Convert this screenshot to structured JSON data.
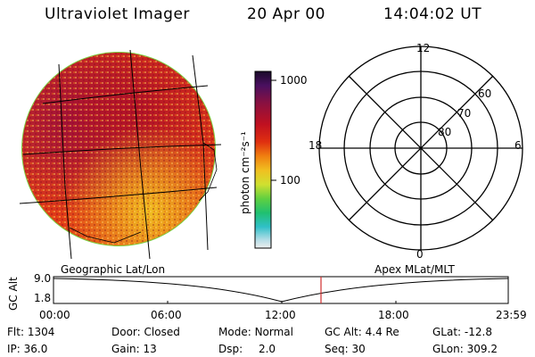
{
  "header": {
    "instrument": "Ultraviolet Imager",
    "date": "20 Apr 00",
    "time": "14:04:02 UT"
  },
  "colorbar": {
    "unit_label": "photon cm⁻²s⁻¹",
    "tick_1000": "1000",
    "tick_100": "100",
    "colors": [
      "#2a0a3a",
      "#5a1060",
      "#8e1040",
      "#c01020",
      "#e02810",
      "#f06a10",
      "#f0a010",
      "#e8d020",
      "#b8e030",
      "#50d040",
      "#20c070",
      "#20b8c0",
      "#90d8e0",
      "#e6e6e6"
    ]
  },
  "polar_plot": {
    "mlt_labels": {
      "top": "12",
      "left": "18",
      "right": "6",
      "bottom": "0"
    },
    "lat_labels": [
      "60",
      "70",
      "80"
    ]
  },
  "timeline": {
    "left_title": "Geographic Lat/Lon",
    "right_title": "Apex MLat/MLT",
    "axis_title": "GC Alt",
    "y_top": "9.0",
    "y_bottom": "1.8",
    "ticks": [
      "00:00",
      "06:00",
      "12:00",
      "18:00",
      "23:59"
    ],
    "current_marker_color": "#d03030"
  },
  "status": {
    "flt": {
      "label": "Flt:",
      "value": "1304"
    },
    "ip": {
      "label": "IP:",
      "value": "36.0"
    },
    "door": {
      "label": "Door:",
      "value": "Closed"
    },
    "gain": {
      "label": "Gain:",
      "value": "13"
    },
    "mode": {
      "label": "Mode:",
      "value": "Normal"
    },
    "dsp": {
      "label": "Dsp:",
      "value": "2.0"
    },
    "gcalt": {
      "label": "GC Alt:",
      "value": "4.4 Re"
    },
    "seq": {
      "label": "Seq:",
      "value": "30"
    },
    "glat": {
      "label": "GLat:",
      "value": "-12.8"
    },
    "glon": {
      "label": "GLon:",
      "value": "309.2"
    }
  }
}
